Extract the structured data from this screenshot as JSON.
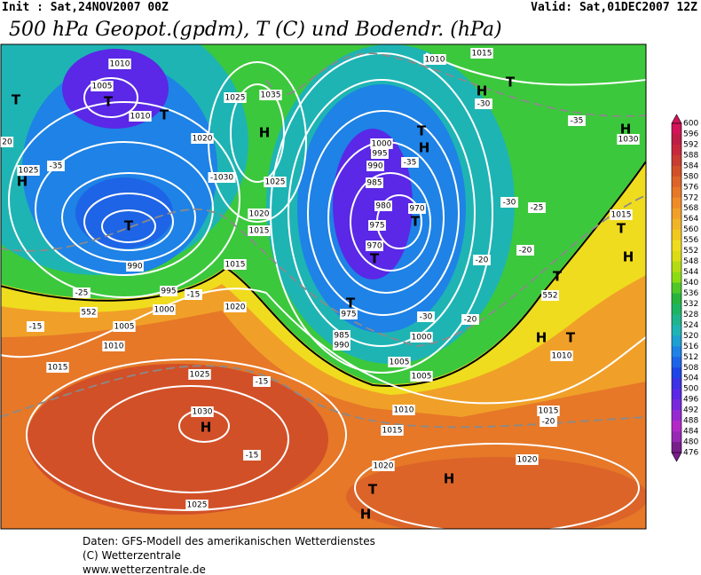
{
  "header": {
    "init": "Init : Sat,24NOV2007 00Z",
    "valid": "Valid: Sat,01DEC2007 12Z",
    "title": "500 hPa Geopot.(gpdm), T (C) und Bodendr. (hPa)"
  },
  "colorbar": {
    "levels": [
      600,
      596,
      592,
      588,
      584,
      580,
      576,
      572,
      568,
      564,
      560,
      556,
      552,
      548,
      544,
      540,
      536,
      532,
      528,
      524,
      520,
      516,
      512,
      508,
      504,
      500,
      496,
      492,
      488,
      484,
      480,
      476
    ],
    "colors": [
      "#d2145a",
      "#be1e46",
      "#c8283c",
      "#c83c32",
      "#d25028",
      "#dc6428",
      "#e67828",
      "#f08c28",
      "#f0a028",
      "#f0b428",
      "#f0c81e",
      "#f0dc1e",
      "#dcdc14",
      "#b4dc14",
      "#8cdc14",
      "#50c828",
      "#28b43c",
      "#1eb464",
      "#1eb48c",
      "#1eb4b4",
      "#1ea0d2",
      "#1e82e6",
      "#1e64e6",
      "#1e46e6",
      "#3c32e6",
      "#5a28e6",
      "#7828dc",
      "#9628d2",
      "#b428c8",
      "#9628b4",
      "#781e8c"
    ]
  },
  "map_labels": [
    "1010",
    "1005",
    "T",
    "1010",
    "T",
    "T",
    "20",
    "1025",
    "H",
    "-35",
    "1020",
    "H",
    "1035",
    "1025",
    "-1030",
    "1025",
    "1020",
    "1015",
    "T",
    "990",
    "1015",
    "-25",
    "995",
    "-15",
    "1000",
    "552",
    "1005",
    "-15",
    "1010",
    "1015",
    "1020",
    "1025",
    "-15",
    "1030",
    "H",
    "-15",
    "1025",
    "T",
    "H",
    "1020",
    "1015",
    "1010",
    "1005",
    "1000",
    "-30",
    "975",
    "T",
    "985",
    "990",
    "1010",
    "1015",
    "H",
    "T",
    "-30",
    "-35",
    "1030",
    "H",
    "1000",
    "995",
    "990",
    "985",
    "H",
    "T",
    "-35",
    "980",
    "975",
    "970",
    "T",
    "970",
    "T",
    "-30",
    "-25",
    "1015",
    "T",
    "H",
    "-20",
    "-20",
    "T",
    "552",
    "H",
    "T",
    "1010",
    "-20",
    "1015",
    "-20",
    "1020",
    "H",
    "1005"
  ],
  "footer": [
    "Daten: GFS-Modell des amerikanischen Wetterdienstes",
    "(C) Wetterzentrale",
    "www.wetterzentrale.de"
  ]
}
